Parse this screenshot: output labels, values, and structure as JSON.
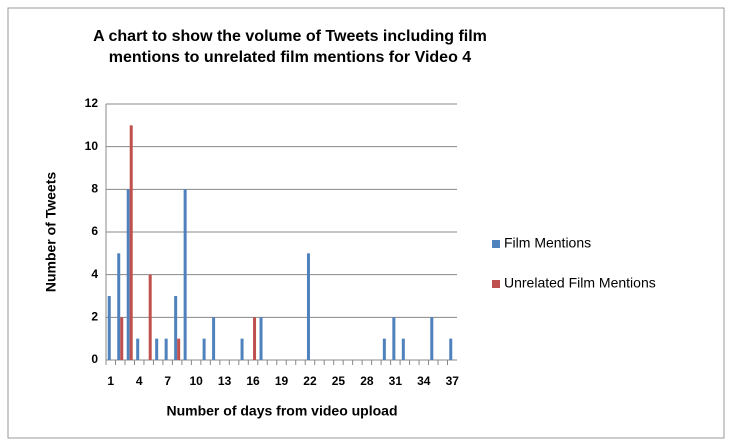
{
  "chart_data": {
    "type": "bar",
    "title": "A chart to show the volume of Tweets including film mentions to unrelated film mentions for Video 4",
    "x_label": "Number of days from video upload",
    "y_label": "Number of Tweets",
    "categories": [
      "1",
      null,
      null,
      "4",
      null,
      null,
      "7",
      null,
      null,
      "10",
      null,
      null,
      "13",
      null,
      null,
      "16",
      null,
      null,
      "19",
      null,
      null,
      "22",
      null,
      null,
      "25",
      null,
      null,
      "28",
      null,
      null,
      "31",
      null,
      null,
      "34",
      null,
      null,
      "37"
    ],
    "series": [
      {
        "name": "Film Mentions",
        "color": "#4f81bd",
        "values": [
          3,
          5,
          8,
          1,
          0,
          1,
          1,
          3,
          8,
          0,
          1,
          2,
          0,
          0,
          1,
          0,
          2,
          0,
          0,
          0,
          0,
          5,
          0,
          0,
          0,
          0,
          0,
          0,
          0,
          1,
          2,
          1,
          0,
          0,
          2,
          0,
          1
        ]
      },
      {
        "name": "Unrelated Film Mentions",
        "color": "#c0504d",
        "values": [
          0,
          2,
          11,
          0,
          4,
          0,
          0,
          1,
          0,
          0,
          0,
          0,
          0,
          0,
          0,
          2,
          0,
          0,
          0,
          0,
          0,
          0,
          0,
          0,
          0,
          0,
          0,
          0,
          0,
          0,
          0,
          0,
          0,
          0,
          0,
          0,
          0
        ]
      }
    ],
    "ylim": [
      0,
      12
    ],
    "yticks": [
      0,
      2,
      4,
      6,
      8,
      10,
      12
    ],
    "grid": true,
    "legend": "right"
  }
}
